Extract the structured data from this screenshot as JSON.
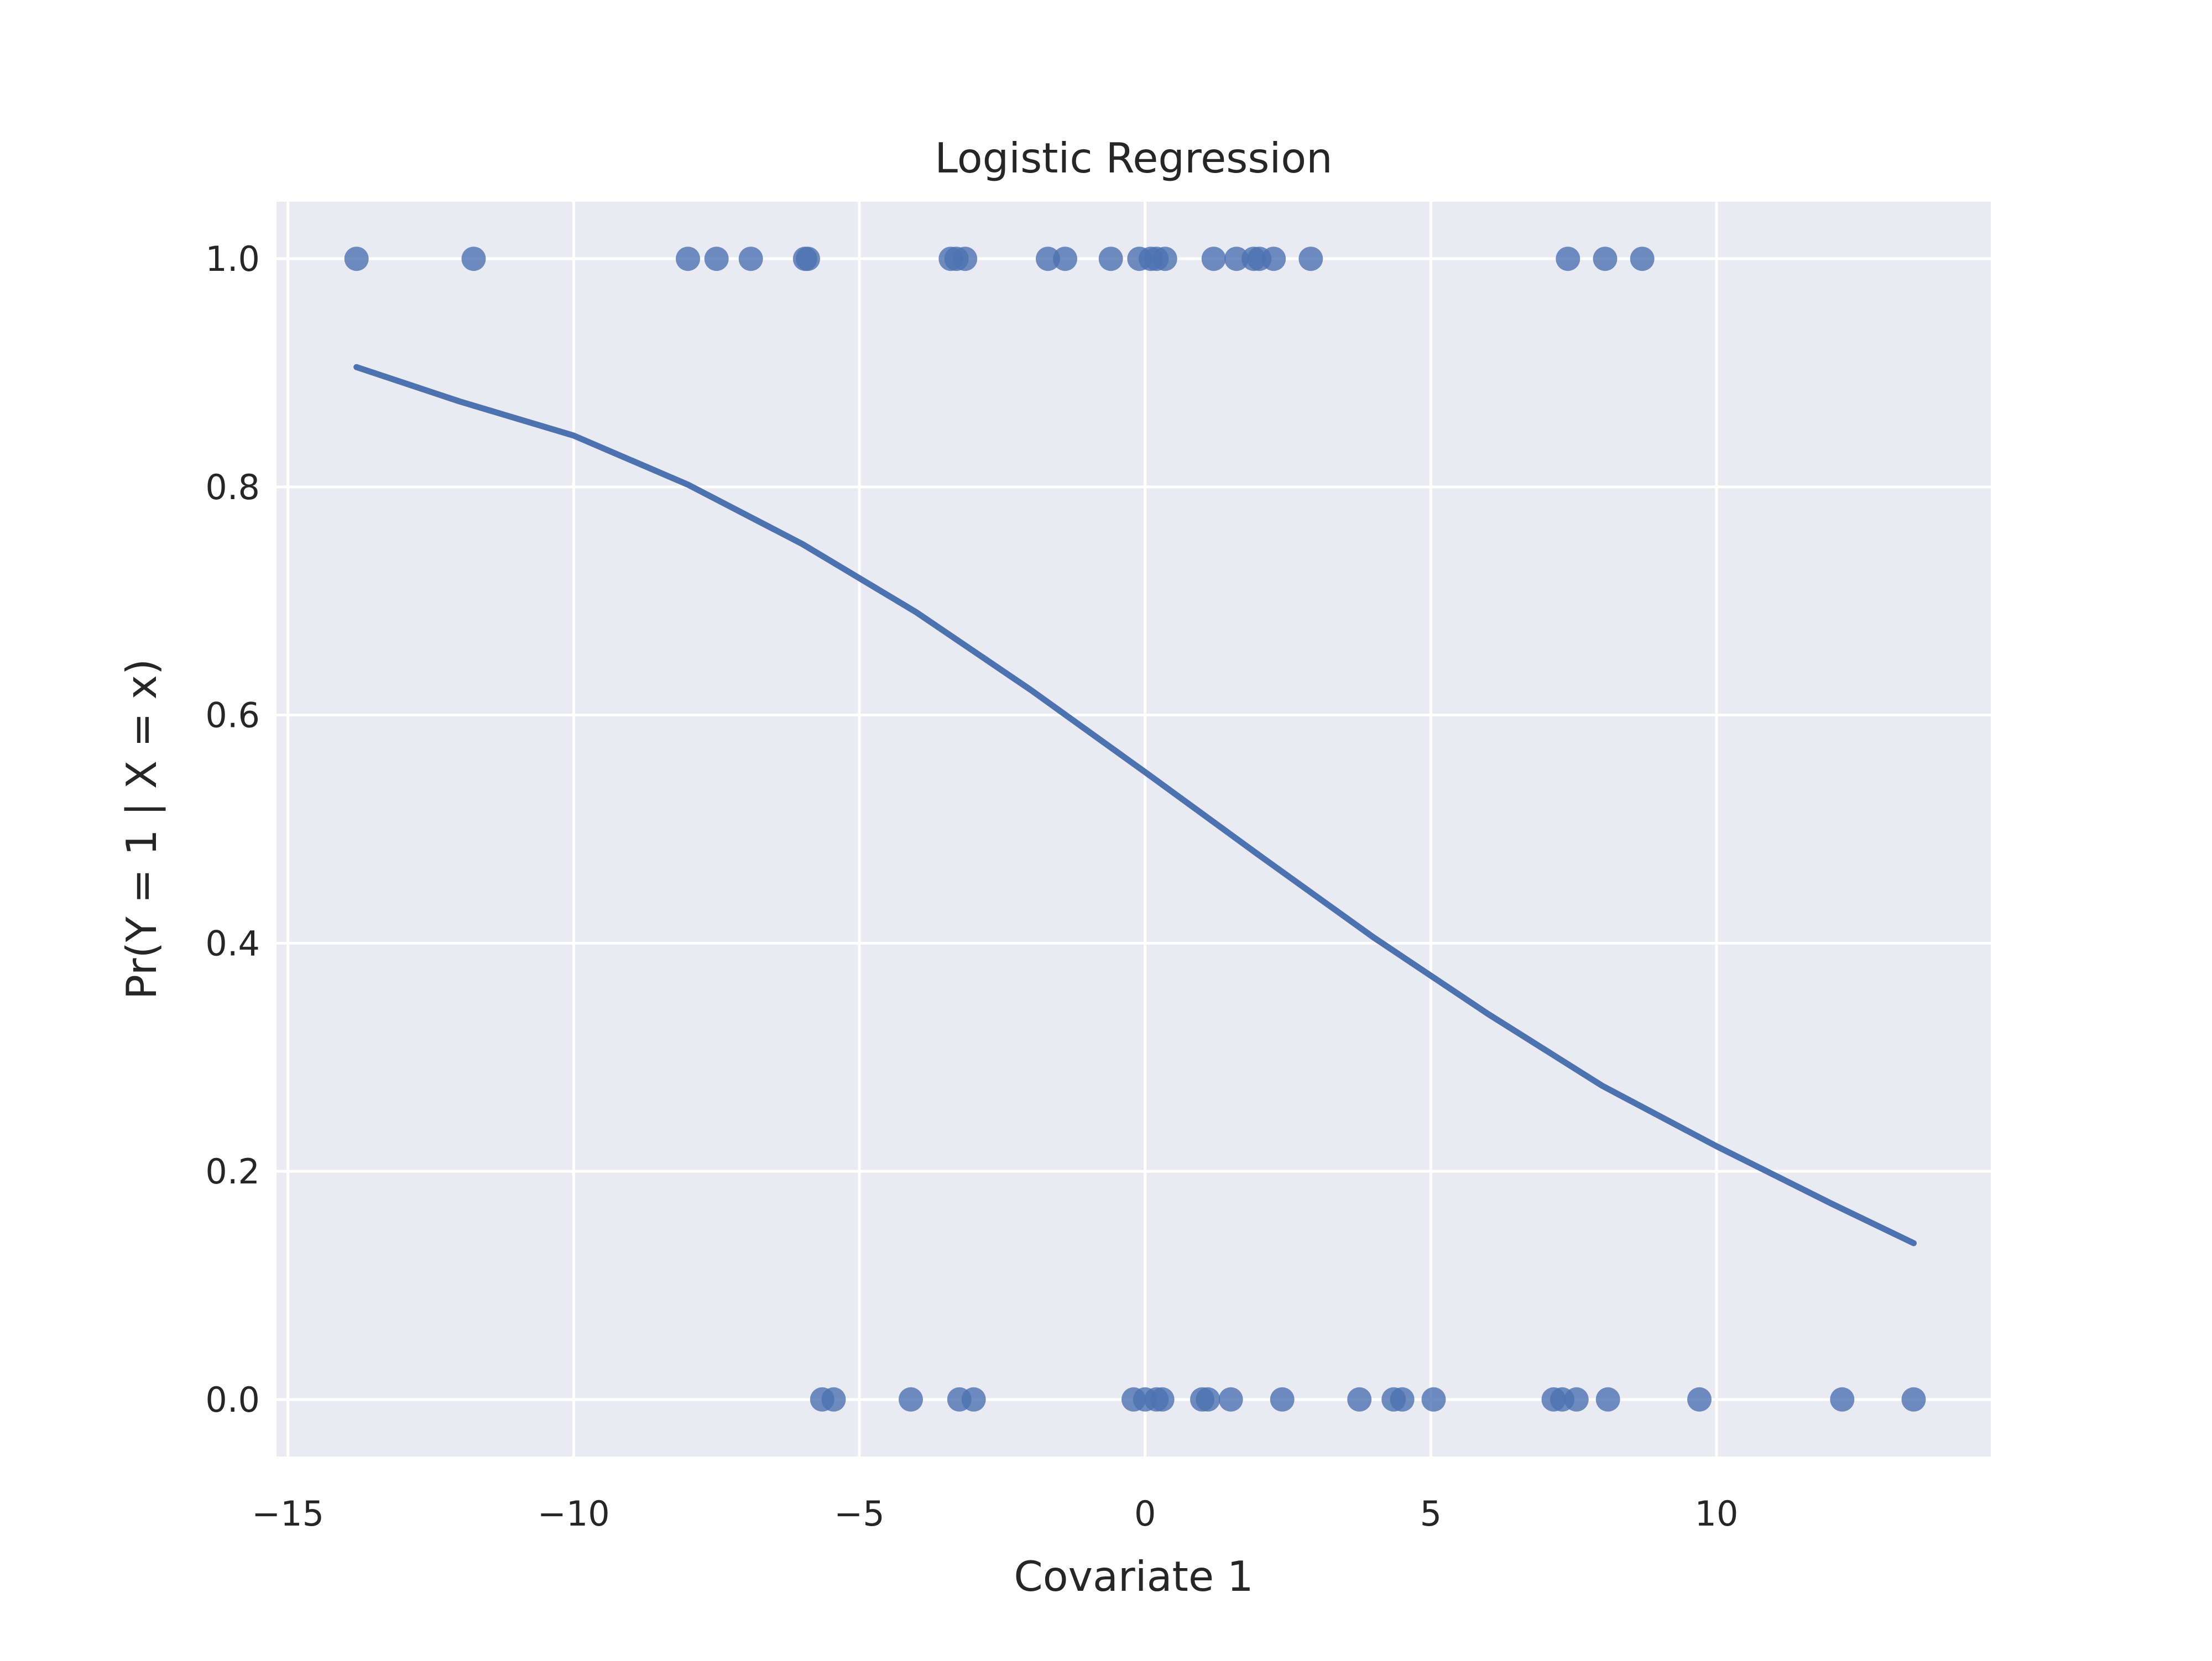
{
  "chart_data": {
    "type": "scatter",
    "title": "Logistic Regression",
    "xlabel": "Covariate 1",
    "ylabel": "Pr(Y = 1 | X = x)",
    "xlim": [
      -15.2,
      14.8
    ],
    "ylim": [
      -0.05,
      1.05
    ],
    "xticks": [
      -15,
      -10,
      -5,
      0,
      5,
      10
    ],
    "xtick_labels": [
      "−15",
      "−10",
      "−5",
      "0",
      "5",
      "10"
    ],
    "yticks": [
      0.0,
      0.2,
      0.4,
      0.6,
      0.8,
      1.0
    ],
    "ytick_labels": [
      "0.0",
      "0.2",
      "0.4",
      "0.6",
      "0.8",
      "1.0"
    ],
    "grid": true,
    "colors": {
      "series": "#4c72b0",
      "plot_background": "#eaeaf2",
      "grid": "#ffffff",
      "text": "#262626"
    },
    "series": [
      {
        "type": "scatter",
        "points": [
          [
            -13.8,
            1
          ],
          [
            -11.75,
            1
          ],
          [
            -8.0,
            1
          ],
          [
            -7.5,
            1
          ],
          [
            -6.9,
            1
          ],
          [
            -5.95,
            1
          ],
          [
            -5.9,
            1
          ],
          [
            -3.4,
            1
          ],
          [
            -3.3,
            1
          ],
          [
            -3.15,
            1
          ],
          [
            -1.7,
            1
          ],
          [
            -1.4,
            1
          ],
          [
            -0.6,
            1
          ],
          [
            -0.1,
            1
          ],
          [
            0.1,
            1
          ],
          [
            0.2,
            1
          ],
          [
            0.35,
            1
          ],
          [
            1.2,
            1
          ],
          [
            1.6,
            1
          ],
          [
            1.9,
            1
          ],
          [
            2.0,
            1
          ],
          [
            2.25,
            1
          ],
          [
            2.9,
            1
          ],
          [
            7.4,
            1
          ],
          [
            8.05,
            1
          ],
          [
            8.7,
            1
          ],
          [
            -5.65,
            0
          ],
          [
            -5.45,
            0
          ],
          [
            -4.1,
            0
          ],
          [
            -3.25,
            0
          ],
          [
            -3.0,
            0
          ],
          [
            -0.2,
            0
          ],
          [
            0.0,
            0
          ],
          [
            0.2,
            0
          ],
          [
            0.3,
            0
          ],
          [
            1.0,
            0
          ],
          [
            1.1,
            0
          ],
          [
            1.5,
            0
          ],
          [
            2.4,
            0
          ],
          [
            3.75,
            0
          ],
          [
            4.35,
            0
          ],
          [
            4.5,
            0
          ],
          [
            5.05,
            0
          ],
          [
            7.15,
            0
          ],
          [
            7.3,
            0
          ],
          [
            7.55,
            0
          ],
          [
            8.1,
            0
          ],
          [
            9.7,
            0
          ],
          [
            12.2,
            0
          ],
          [
            13.45,
            0
          ]
        ]
      },
      {
        "type": "line",
        "x": [
          -13.8,
          -12,
          -10,
          -8,
          -6,
          -4,
          -2,
          0,
          2,
          4,
          6,
          8,
          10,
          12,
          13.45
        ],
        "y": [
          0.905,
          0.875,
          0.845,
          0.802,
          0.75,
          0.69,
          0.622,
          0.55,
          0.477,
          0.405,
          0.338,
          0.275,
          0.222,
          0.172,
          0.137
        ]
      }
    ]
  }
}
